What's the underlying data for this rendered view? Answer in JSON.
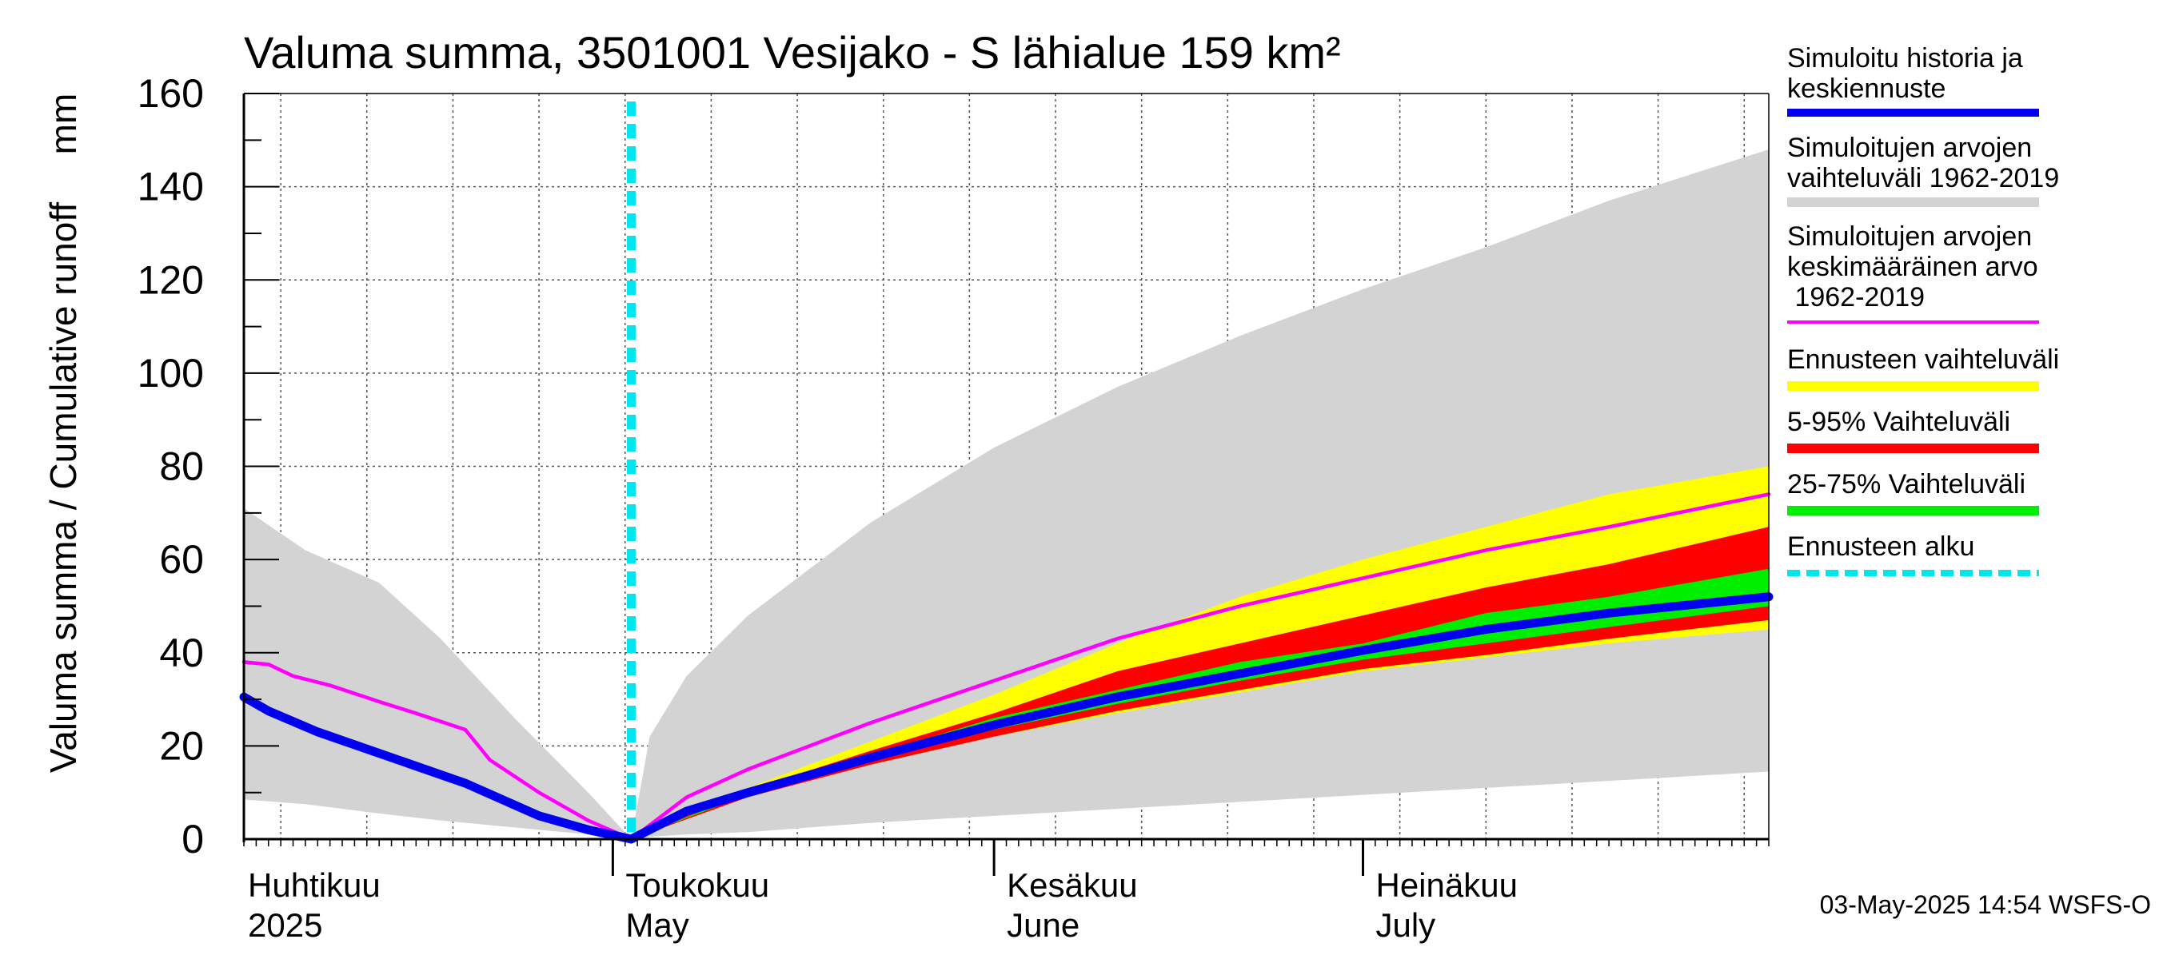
{
  "chart_data": {
    "type": "area",
    "title": "Valuma summa, 3501001 Vesijako - S lähialue 159 km²",
    "ylabel": "Valuma summa / Cumulative runoff",
    "yunit": "mm",
    "ylim": [
      0,
      160
    ],
    "yticks": [
      0,
      20,
      40,
      60,
      80,
      100,
      120,
      140,
      160
    ],
    "xlim_days": [
      0,
      124
    ],
    "months": [
      {
        "fi": "Huhtikuu",
        "en": "2025",
        "day": 0
      },
      {
        "fi": "Toukokuu",
        "en": "May",
        "day": 30
      },
      {
        "fi": "Kesäkuu",
        "en": "June",
        "day": 61
      },
      {
        "fi": "Heinäkuu",
        "en": "July",
        "day": 91
      }
    ],
    "month_boundaries": [
      30,
      61,
      91
    ],
    "forecast_start_day": 31.5,
    "series": [
      {
        "name": "Simuloitujen arvojen vaihteluväli 1962-2019",
        "kind": "band",
        "color": "#d3d3d3",
        "x": [
          0,
          5,
          11,
          16,
          22,
          28,
          31.5,
          33,
          36,
          41,
          46,
          51,
          61,
          71,
          81,
          91,
          101,
          111,
          124
        ],
        "lower": [
          8.5,
          7.5,
          5.5,
          4,
          2.5,
          1,
          0,
          0.5,
          1,
          1.5,
          2.5,
          3.5,
          5,
          6.5,
          8,
          9.5,
          11,
          12.5,
          14.5
        ],
        "upper": [
          71,
          62,
          55,
          43,
          26,
          10,
          0,
          22,
          35,
          48,
          58,
          68,
          84,
          97,
          108,
          118,
          127,
          137,
          148
        ]
      },
      {
        "name": "Ennusteen vaihteluväli",
        "kind": "band",
        "color": "#ffff00",
        "x": [
          31.5,
          41,
          51,
          61,
          71,
          81,
          91,
          101,
          111,
          124
        ],
        "lower": [
          0,
          9,
          16,
          22,
          27,
          31.5,
          36,
          39,
          42,
          45
        ],
        "upper": [
          0,
          11,
          21,
          31,
          42,
          52,
          60,
          67,
          74,
          80
        ]
      },
      {
        "name": "5-95% Vaihteluväli",
        "kind": "band",
        "color": "#ff0000",
        "x": [
          31.5,
          41,
          51,
          61,
          71,
          81,
          91,
          101,
          111,
          124
        ],
        "lower": [
          0,
          9,
          16,
          22,
          27.5,
          32,
          36.5,
          39.5,
          43,
          47
        ],
        "upper": [
          0,
          10.5,
          19,
          27,
          36,
          42,
          48,
          54,
          59,
          67
        ]
      },
      {
        "name": "25-75% Vaihteluväli",
        "kind": "band",
        "color": "#00ee00",
        "x": [
          31.5,
          41,
          51,
          61,
          71,
          81,
          91,
          101,
          111,
          124
        ],
        "lower": [
          0,
          9.5,
          17,
          23.5,
          29,
          34,
          38.5,
          42,
          45.5,
          50
        ],
        "upper": [
          0,
          10,
          18,
          26,
          32,
          38,
          42,
          48.5,
          52,
          58
        ]
      },
      {
        "name": "Simuloitujen arvojen keskimääräinen arvo 1962-2019",
        "kind": "line",
        "color": "#ff00ff",
        "x": [
          0,
          2,
          4,
          7,
          11,
          14,
          18,
          20,
          24,
          28,
          31.5,
          36,
          41,
          51,
          61,
          71,
          81,
          91,
          101,
          111,
          124
        ],
        "y": [
          38,
          37.5,
          35,
          33,
          29.5,
          27,
          23.5,
          17,
          10,
          4,
          0,
          9,
          15,
          25,
          34,
          43,
          50,
          56,
          62,
          67,
          74
        ]
      },
      {
        "name": "Simuloitu historia ja keskiennuste",
        "kind": "line",
        "color": "#0000ee",
        "x": [
          0,
          2,
          6,
          12,
          18,
          24,
          28,
          31.5,
          36,
          41,
          51,
          61,
          71,
          81,
          91,
          101,
          111,
          124
        ],
        "y": [
          30.5,
          27.5,
          23,
          17.5,
          12,
          5,
          2,
          0,
          6,
          10,
          17.5,
          24.5,
          30.5,
          35.5,
          40.5,
          45,
          48.5,
          52
        ]
      }
    ]
  },
  "legend": [
    {
      "label": "Simuloitu historia ja keskiennuste",
      "color": "#0000ee",
      "style": "solid"
    },
    {
      "label": "Simuloitujen arvojen vaihteluväli 1962-2019",
      "color": "#d3d3d3",
      "style": "solid"
    },
    {
      "label": "Simuloitujen arvojen keskimääräinen arvo 1962-2019",
      "color": "#ff00ff",
      "style": "thin"
    },
    {
      "label": "Ennusteen vaihteluväli",
      "color": "#ffff00",
      "style": "solid"
    },
    {
      "label": "5-95% Vaihteluväli",
      "color": "#ff0000",
      "style": "solid"
    },
    {
      "label": "25-75% Vaihteluväli",
      "color": "#00ee00",
      "style": "solid"
    },
    {
      "label": "Ennusteen alku",
      "color": "#00e5ee",
      "style": "dashed"
    }
  ],
  "footer": "03-May-2025 14:54 WSFS-O"
}
